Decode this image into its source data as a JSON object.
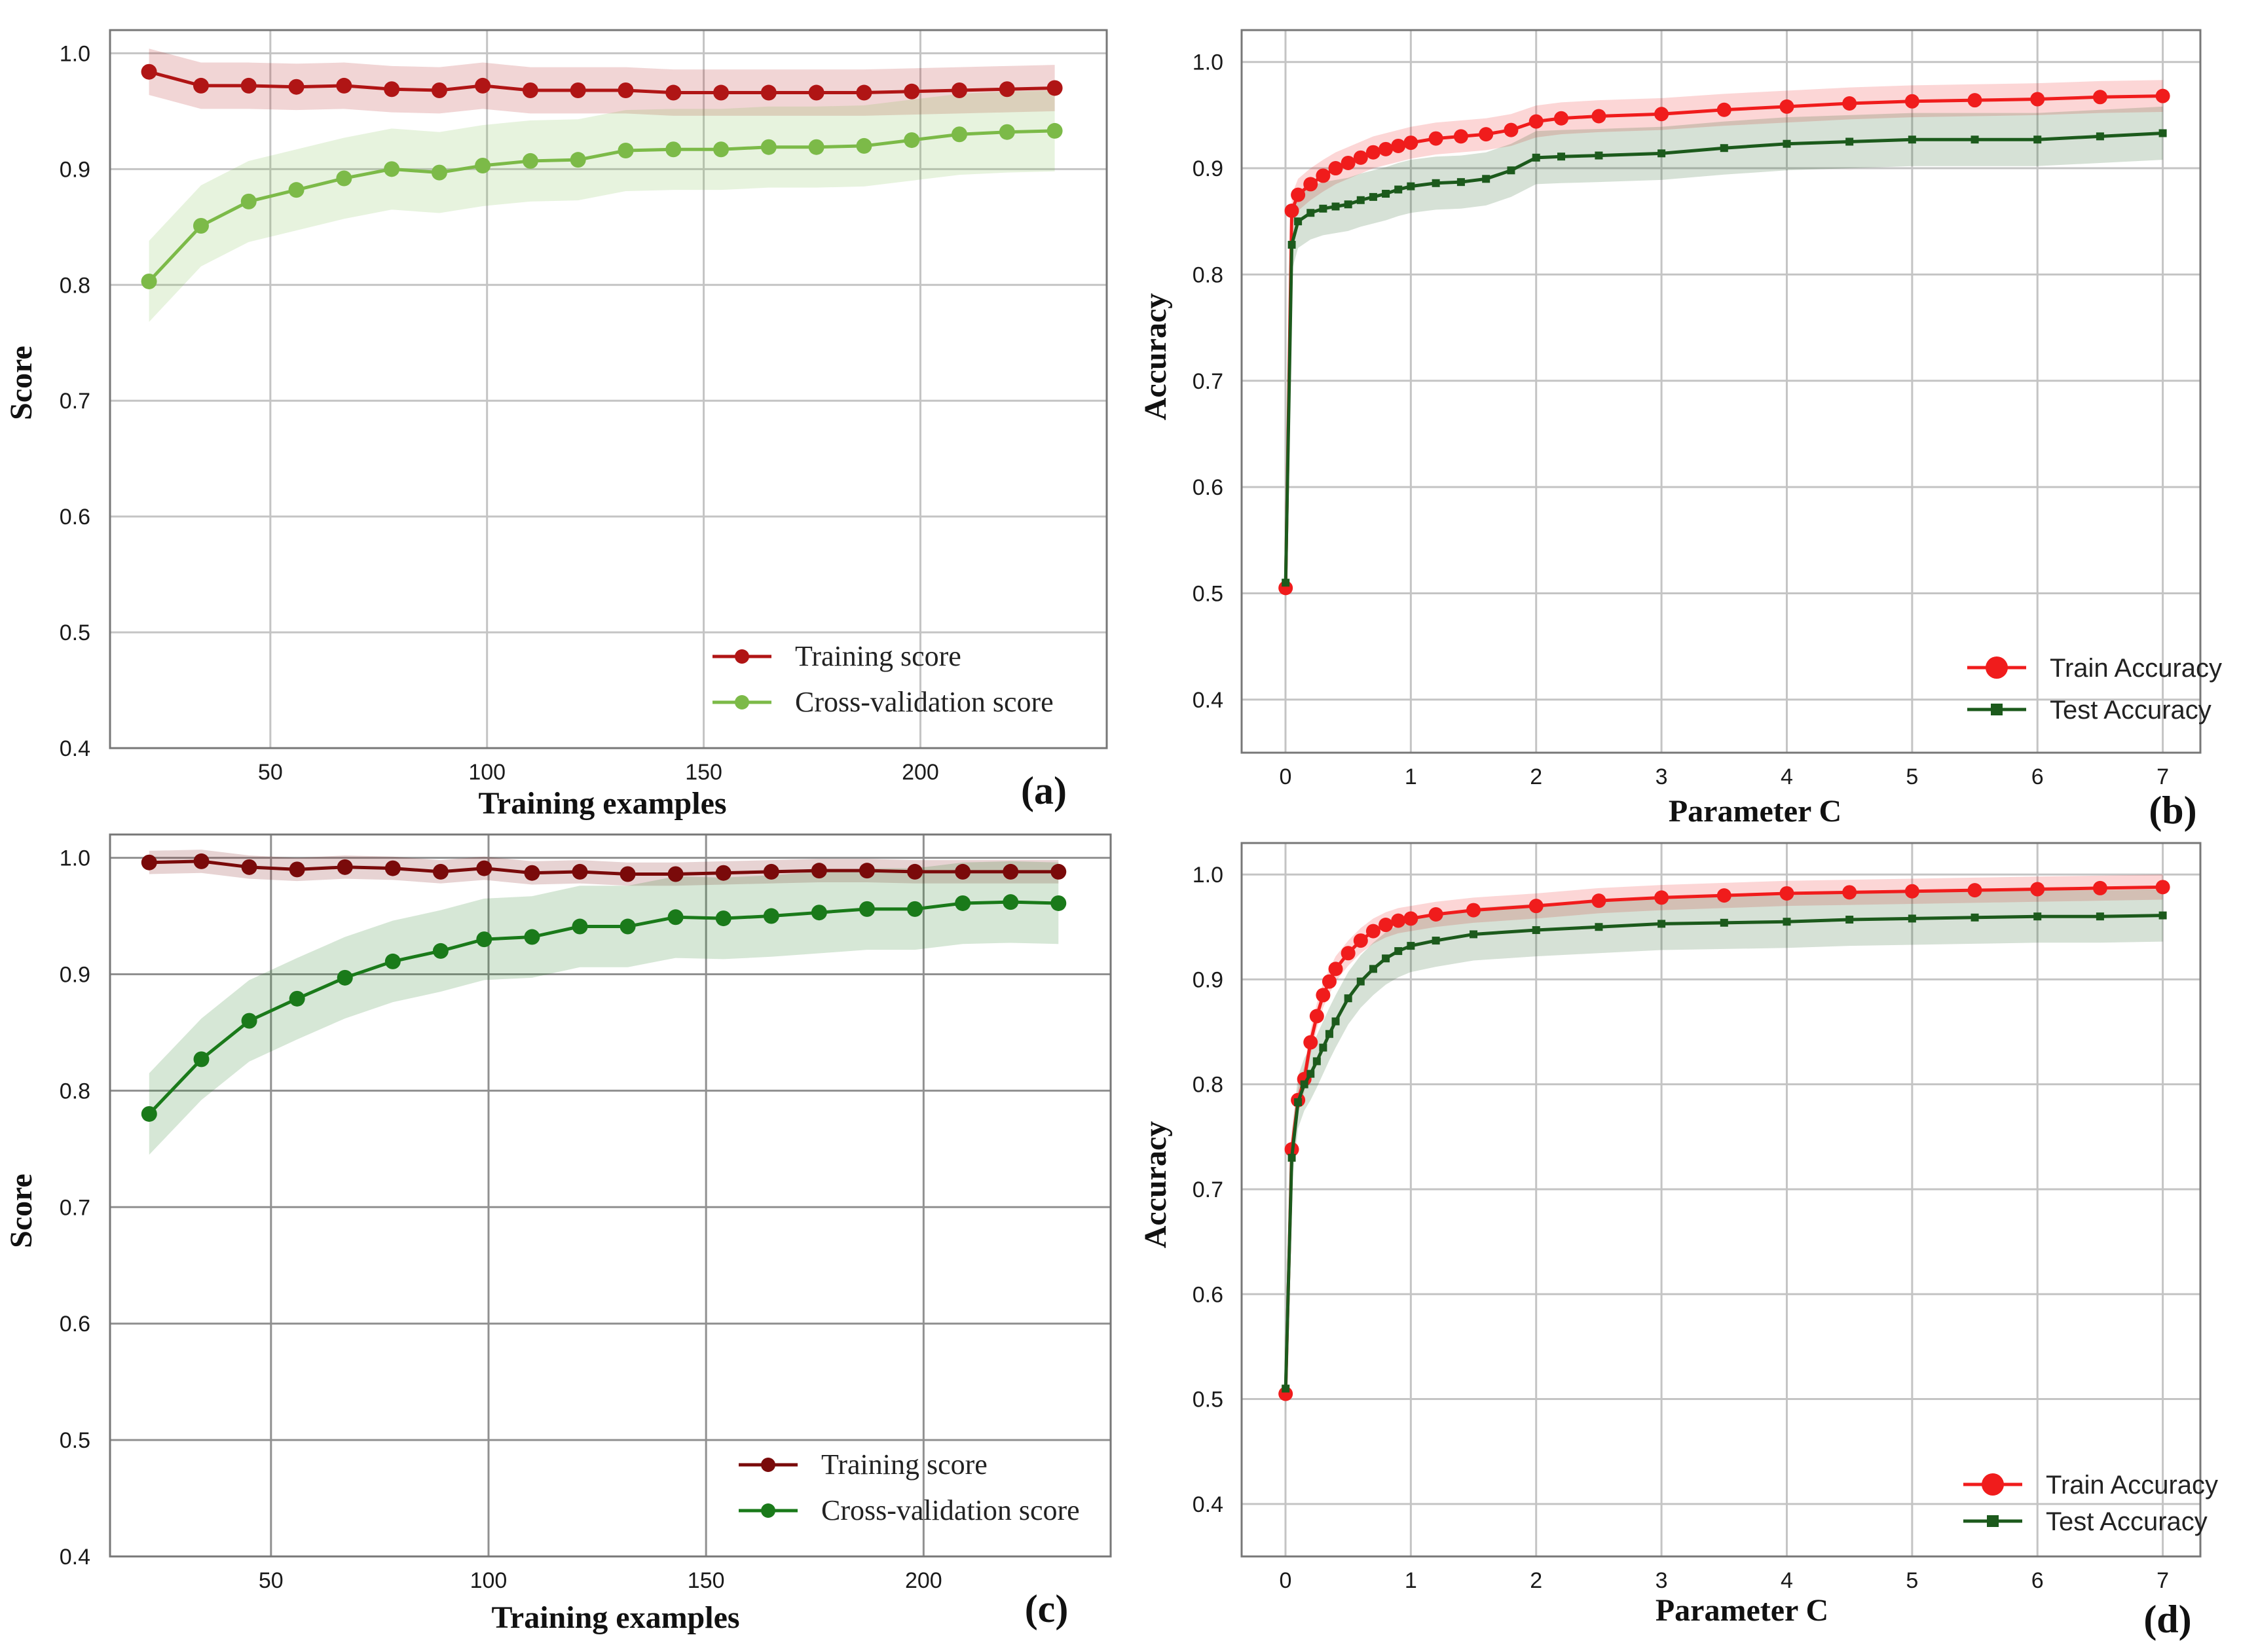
{
  "chart_data": [
    {
      "id": "a",
      "type": "line",
      "panel_label": "(a)",
      "xlabel": "Training examples",
      "ylabel": "Score",
      "xlim": [
        13,
        243
      ],
      "ylim": [
        0.4,
        1.02
      ],
      "xticks": [
        50,
        100,
        150,
        200
      ],
      "yticks": [
        0.4,
        0.5,
        0.6,
        0.7,
        0.8,
        0.9,
        1.0
      ],
      "legend_position": "lower-right",
      "x": [
        22,
        34,
        45,
        56,
        67,
        78,
        89,
        99,
        110,
        121,
        132,
        143,
        154,
        165,
        176,
        187,
        198,
        209,
        220,
        231
      ],
      "series": [
        {
          "name": "Training score",
          "color": "#b01515",
          "marker": "circle",
          "band": 0.02,
          "values": [
            0.984,
            0.972,
            0.972,
            0.971,
            0.972,
            0.969,
            0.968,
            0.972,
            0.968,
            0.968,
            0.968,
            0.966,
            0.966,
            0.966,
            0.966,
            0.966,
            0.967,
            0.968,
            0.969,
            0.97
          ]
        },
        {
          "name": "Cross-validation score",
          "color": "#7cba48",
          "marker": "circle",
          "band": 0.035,
          "values": [
            0.803,
            0.851,
            0.872,
            0.882,
            0.892,
            0.9,
            0.897,
            0.903,
            0.907,
            0.908,
            0.916,
            0.917,
            0.917,
            0.919,
            0.919,
            0.92,
            0.925,
            0.93,
            0.932,
            0.933
          ]
        }
      ]
    },
    {
      "id": "b",
      "type": "line",
      "panel_label": "(b)",
      "xlabel": "Parameter C",
      "ylabel": "Accuracy",
      "xlim": [
        -0.35,
        7.3
      ],
      "ylim": [
        0.35,
        1.03
      ],
      "xticks": [
        0,
        1,
        2,
        3,
        4,
        5,
        6,
        7
      ],
      "yticks": [
        0.4,
        0.5,
        0.6,
        0.7,
        0.8,
        0.9,
        1.0
      ],
      "legend_position": "lower-right",
      "x": [
        0.001,
        0.05,
        0.1,
        0.2,
        0.3,
        0.4,
        0.5,
        0.6,
        0.7,
        0.8,
        0.9,
        1.0,
        1.2,
        1.4,
        1.6,
        1.8,
        2.0,
        2.2,
        2.5,
        3.0,
        3.5,
        4.0,
        4.5,
        5.0,
        5.5,
        6.0,
        6.5,
        7.0
      ],
      "series": [
        {
          "name": "Train Accuracy",
          "color": "#f01c1c",
          "marker": "circle",
          "band": 0.015,
          "values": [
            0.505,
            0.86,
            0.875,
            0.885,
            0.893,
            0.9,
            0.905,
            0.91,
            0.915,
            0.918,
            0.921,
            0.924,
            0.928,
            0.93,
            0.932,
            0.936,
            0.944,
            0.947,
            0.949,
            0.951,
            0.955,
            0.958,
            0.961,
            0.963,
            0.964,
            0.965,
            0.967,
            0.968
          ]
        },
        {
          "name": "Test Accuracy",
          "color": "#1c5a1c",
          "marker": "square",
          "band": 0.025,
          "values": [
            0.51,
            0.828,
            0.85,
            0.858,
            0.862,
            0.864,
            0.866,
            0.87,
            0.873,
            0.876,
            0.88,
            0.883,
            0.886,
            0.887,
            0.89,
            0.898,
            0.91,
            0.911,
            0.912,
            0.914,
            0.919,
            0.923,
            0.925,
            0.927,
            0.927,
            0.927,
            0.93,
            0.933
          ]
        }
      ]
    },
    {
      "id": "c",
      "type": "line",
      "panel_label": "(c)",
      "xlabel": "Training examples",
      "ylabel": "Score",
      "xlim": [
        13,
        243
      ],
      "ylim": [
        0.4,
        1.02
      ],
      "xticks": [
        50,
        100,
        150,
        200
      ],
      "yticks": [
        0.4,
        0.5,
        0.6,
        0.7,
        0.8,
        0.9,
        1.0
      ],
      "legend_position": "lower-right",
      "x": [
        22,
        34,
        45,
        56,
        67,
        78,
        89,
        99,
        110,
        121,
        132,
        143,
        154,
        165,
        176,
        187,
        198,
        209,
        220,
        231
      ],
      "series": [
        {
          "name": "Training score",
          "color": "#7a0a0a",
          "marker": "circle",
          "band": 0.01,
          "values": [
            0.996,
            0.997,
            0.992,
            0.99,
            0.992,
            0.991,
            0.988,
            0.991,
            0.987,
            0.988,
            0.986,
            0.986,
            0.987,
            0.988,
            0.989,
            0.989,
            0.988,
            0.988,
            0.988,
            0.988
          ]
        },
        {
          "name": "Cross-validation score",
          "color": "#1a7a1a",
          "marker": "circle",
          "band": 0.035,
          "values": [
            0.78,
            0.827,
            0.86,
            0.879,
            0.897,
            0.911,
            0.92,
            0.93,
            0.932,
            0.941,
            0.941,
            0.949,
            0.948,
            0.95,
            0.953,
            0.956,
            0.956,
            0.961,
            0.962,
            0.961
          ]
        }
      ]
    },
    {
      "id": "d",
      "type": "line",
      "panel_label": "(d)",
      "xlabel": "Parameter C",
      "ylabel": "Accuracy",
      "xlim": [
        -0.35,
        7.3
      ],
      "ylim": [
        0.35,
        1.03
      ],
      "xticks": [
        0,
        1,
        2,
        3,
        4,
        5,
        6,
        7
      ],
      "yticks": [
        0.4,
        0.5,
        0.6,
        0.7,
        0.8,
        0.9,
        1.0
      ],
      "legend_position": "lower-right",
      "x": [
        0.001,
        0.05,
        0.1,
        0.15,
        0.2,
        0.25,
        0.3,
        0.35,
        0.4,
        0.5,
        0.6,
        0.7,
        0.8,
        0.9,
        1.0,
        1.2,
        1.5,
        2.0,
        2.5,
        3.0,
        3.5,
        4.0,
        4.5,
        5.0,
        5.5,
        6.0,
        6.5,
        7.0
      ],
      "series": [
        {
          "name": "Train Accuracy",
          "color": "#f01c1c",
          "marker": "circle",
          "band": 0.012,
          "values": [
            0.505,
            0.738,
            0.785,
            0.805,
            0.84,
            0.865,
            0.885,
            0.898,
            0.91,
            0.925,
            0.937,
            0.946,
            0.952,
            0.956,
            0.958,
            0.962,
            0.966,
            0.97,
            0.975,
            0.978,
            0.98,
            0.982,
            0.983,
            0.984,
            0.985,
            0.986,
            0.987,
            0.988
          ]
        },
        {
          "name": "Test Accuracy",
          "color": "#1c5a1c",
          "marker": "square",
          "band": 0.025,
          "values": [
            0.51,
            0.73,
            0.783,
            0.8,
            0.81,
            0.822,
            0.835,
            0.848,
            0.86,
            0.882,
            0.898,
            0.91,
            0.92,
            0.927,
            0.932,
            0.937,
            0.943,
            0.947,
            0.95,
            0.953,
            0.954,
            0.955,
            0.957,
            0.958,
            0.959,
            0.96,
            0.96,
            0.961
          ]
        }
      ]
    }
  ]
}
